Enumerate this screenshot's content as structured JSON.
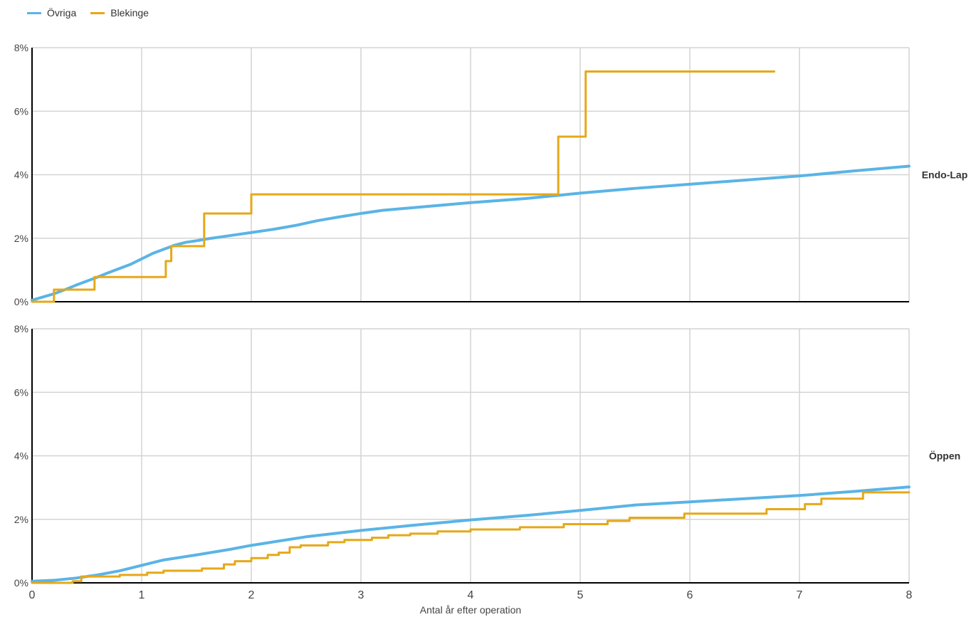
{
  "chart_data": {
    "type": "line",
    "line_shape": "step",
    "xlabel": "Antal år efter operation",
    "x_ticks": [
      "0",
      "1",
      "2",
      "3",
      "4",
      "5",
      "6",
      "7",
      "8"
    ],
    "y_ticks": [
      "0%",
      "2%",
      "4%",
      "6%",
      "8%"
    ],
    "xlim": [
      0,
      8
    ],
    "ylim": [
      0,
      8
    ],
    "y_unit": "%",
    "grid": true,
    "legend_position": "top-left",
    "legend": [
      {
        "name": "Övriga",
        "color": "#5ab4e5"
      },
      {
        "name": "Blekinge",
        "color": "#e6a817"
      }
    ],
    "panels": [
      {
        "label": "Endo-Lap",
        "series": [
          {
            "name": "Övriga",
            "color": "#5ab4e5",
            "x": [
              0,
              0.1,
              0.2,
              0.3,
              0.4,
              0.5,
              0.6,
              0.7,
              0.8,
              0.9,
              1.0,
              1.1,
              1.2,
              1.3,
              1.4,
              1.5,
              1.6,
              1.8,
              2.0,
              2.2,
              2.4,
              2.6,
              2.8,
              3.0,
              3.2,
              3.5,
              4.0,
              4.5,
              4.8,
              5.0,
              5.5,
              6.0,
              6.5,
              7.0,
              7.5,
              8.0
            ],
            "y": [
              0.05,
              0.15,
              0.25,
              0.38,
              0.52,
              0.65,
              0.78,
              0.92,
              1.05,
              1.18,
              1.35,
              1.52,
              1.65,
              1.78,
              1.87,
              1.92,
              1.98,
              2.08,
              2.18,
              2.28,
              2.4,
              2.55,
              2.67,
              2.78,
              2.88,
              2.97,
              3.12,
              3.25,
              3.35,
              3.42,
              3.57,
              3.7,
              3.83,
              3.96,
              4.12,
              4.27
            ]
          },
          {
            "name": "Blekinge",
            "color": "#e6a817",
            "x": [
              0,
              0.2,
              0.57,
              1.22,
              1.27,
              1.57,
              2.0,
              4.8,
              5.05,
              6.77
            ],
            "y": [
              0,
              0.38,
              0.78,
              1.28,
              1.75,
              2.78,
              3.38,
              5.2,
              7.25,
              7.25
            ]
          }
        ]
      },
      {
        "label": "Öppen",
        "series": [
          {
            "name": "Övriga",
            "color": "#5ab4e5",
            "x": [
              0,
              0.2,
              0.4,
              0.6,
              0.8,
              1.0,
              1.2,
              1.5,
              1.8,
              2.0,
              2.5,
              3.0,
              3.5,
              4.0,
              4.5,
              5.0,
              5.5,
              6.0,
              6.5,
              7.0,
              7.5,
              8.0
            ],
            "y": [
              0.05,
              0.08,
              0.15,
              0.25,
              0.38,
              0.55,
              0.72,
              0.88,
              1.05,
              1.18,
              1.45,
              1.65,
              1.82,
              1.98,
              2.12,
              2.28,
              2.45,
              2.55,
              2.65,
              2.75,
              2.88,
              3.02
            ]
          },
          {
            "name": "Blekinge",
            "color": "#e6a817",
            "x": [
              0,
              0.37,
              0.45,
              0.8,
              1.05,
              1.2,
              1.55,
              1.75,
              1.85,
              2.0,
              2.15,
              2.25,
              2.35,
              2.45,
              2.7,
              2.85,
              3.1,
              3.25,
              3.45,
              3.7,
              4.0,
              4.45,
              4.85,
              5.25,
              5.45,
              5.95,
              6.7,
              7.05,
              7.2,
              7.58,
              8.0
            ],
            "y": [
              0,
              0.05,
              0.2,
              0.25,
              0.32,
              0.38,
              0.45,
              0.58,
              0.68,
              0.78,
              0.88,
              0.95,
              1.12,
              1.18,
              1.28,
              1.35,
              1.42,
              1.5,
              1.55,
              1.62,
              1.68,
              1.75,
              1.85,
              1.95,
              2.05,
              2.18,
              2.32,
              2.48,
              2.65,
              2.85,
              2.85
            ]
          }
        ]
      }
    ]
  }
}
